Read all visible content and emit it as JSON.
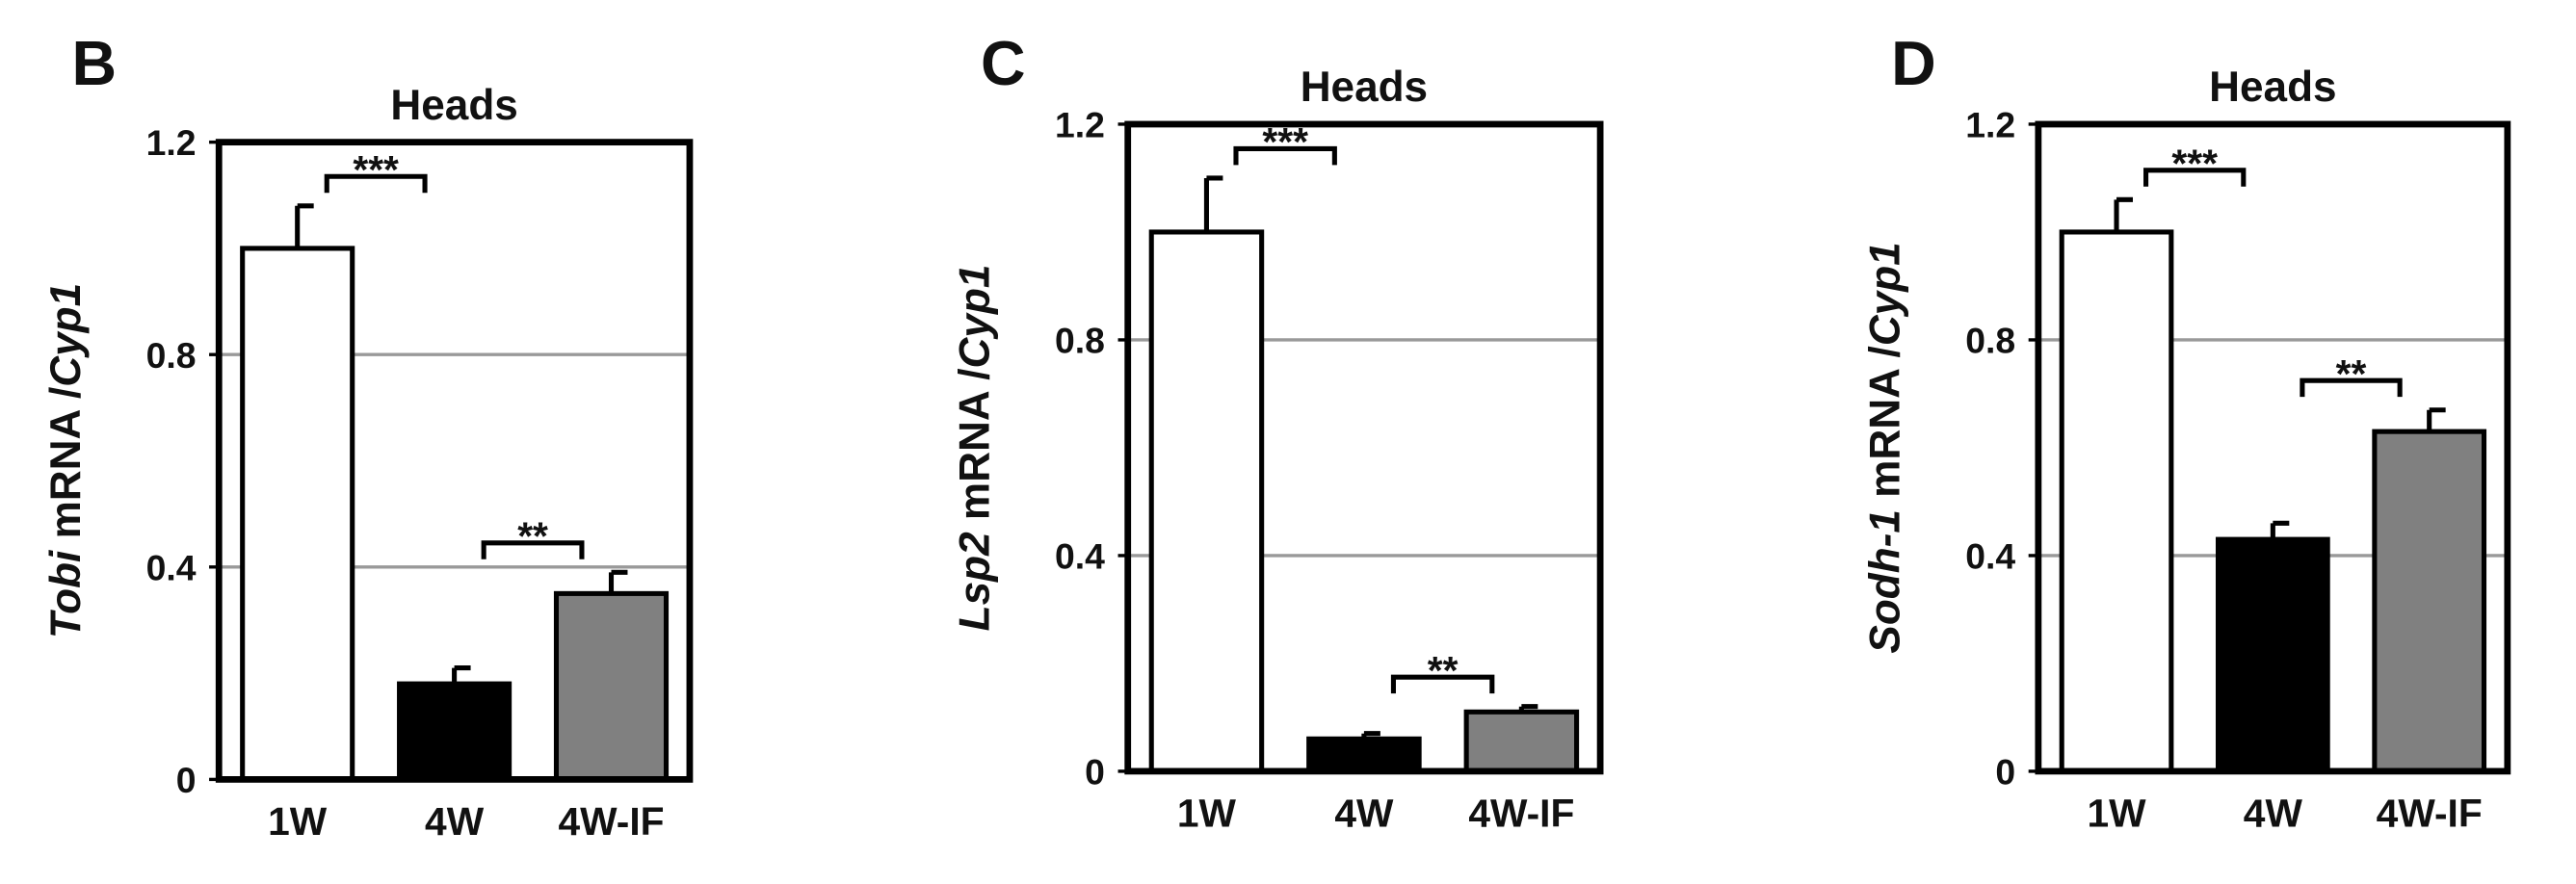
{
  "chart_data": [
    {
      "type": "bar",
      "panel": "B",
      "title": "Heads",
      "ylabel": [
        "Tobi",
        " mRNA /",
        "Cyp1"
      ],
      "categories": [
        "1W",
        "4W",
        "4W-IF"
      ],
      "values": [
        1.0,
        0.18,
        0.35
      ],
      "errors": [
        0.08,
        0.03,
        0.04
      ],
      "colors": [
        "#ffffff",
        "#000000",
        "#808080"
      ],
      "annotations": [
        "***",
        "**"
      ],
      "ylim": [
        0,
        1.2
      ],
      "yticks": [
        0,
        0.4,
        0.8,
        1.2
      ],
      "grid": true
    },
    {
      "type": "bar",
      "panel": "C",
      "title": "Heads",
      "ylabel": [
        "Lsp2",
        " mRNA /",
        "Cyp1"
      ],
      "categories": [
        "1W",
        "4W",
        "4W-IF"
      ],
      "values": [
        1.0,
        0.06,
        0.11
      ],
      "errors": [
        0.1,
        0.01,
        0.01
      ],
      "colors": [
        "#ffffff",
        "#000000",
        "#808080"
      ],
      "annotations": [
        "***",
        "**"
      ],
      "ylim": [
        0,
        1.2
      ],
      "yticks": [
        0,
        0.4,
        0.8,
        1.2
      ],
      "grid": true
    },
    {
      "type": "bar",
      "panel": "D",
      "title": "Heads",
      "ylabel": [
        "Sodh-1",
        " mRNA /",
        "Cyp1"
      ],
      "categories": [
        "1W",
        "4W",
        "4W-IF"
      ],
      "values": [
        1.0,
        0.43,
        0.63
      ],
      "errors": [
        0.06,
        0.03,
        0.04
      ],
      "colors": [
        "#ffffff",
        "#000000",
        "#808080"
      ],
      "annotations": [
        "***",
        "**"
      ],
      "ylim": [
        0,
        1.2
      ],
      "yticks": [
        0,
        0.4,
        0.8,
        1.2
      ],
      "grid": true
    }
  ]
}
